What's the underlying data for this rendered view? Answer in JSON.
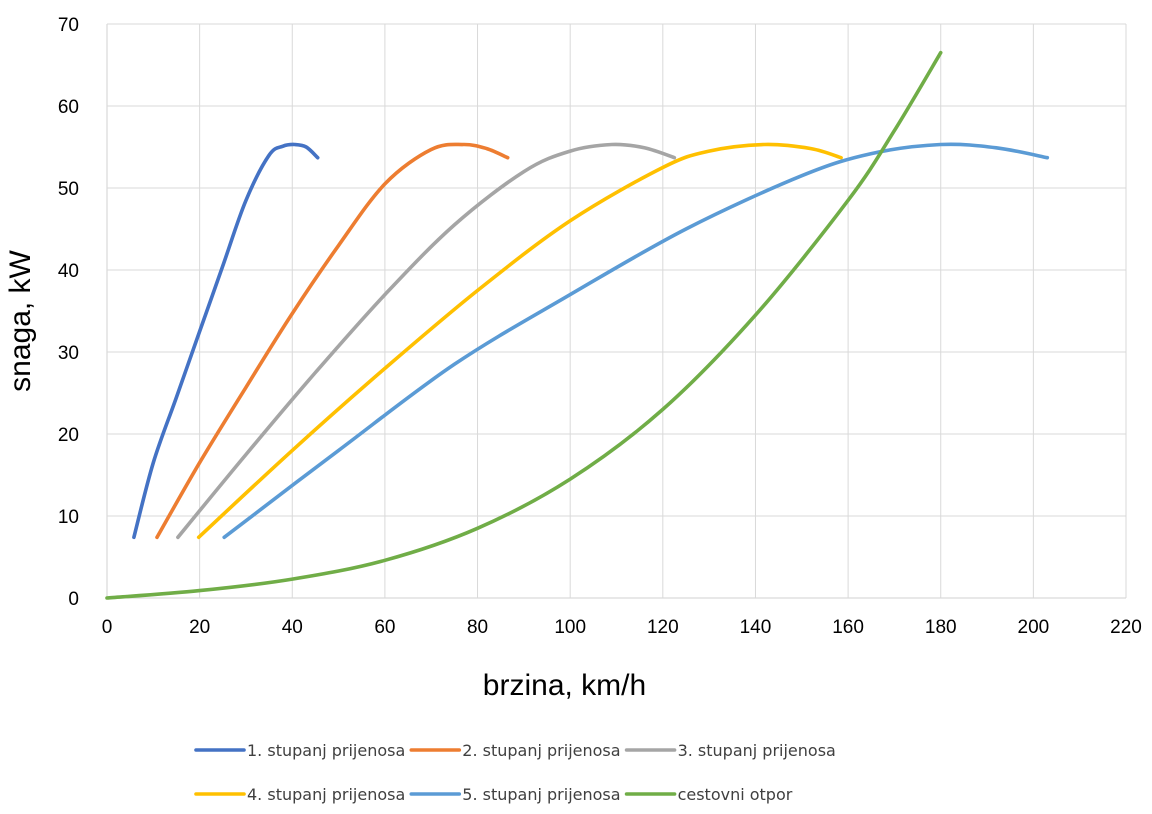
{
  "chart_data": {
    "type": "line",
    "title": "",
    "xlabel": "brzina, km/h",
    "ylabel": "snaga, kW",
    "xlim": [
      0,
      220
    ],
    "ylim": [
      0,
      70
    ],
    "x_ticks": [
      0,
      20,
      40,
      60,
      80,
      100,
      120,
      140,
      160,
      180,
      200,
      220
    ],
    "y_ticks": [
      0,
      10,
      20,
      30,
      40,
      50,
      60,
      70
    ],
    "grid": true,
    "legend_position": "bottom",
    "series": [
      {
        "name": "1. stupanj prijenosa",
        "color": "#4472C4",
        "x": [
          5.8,
          10,
          15,
          20,
          25,
          30,
          35,
          38,
          40.5,
          43,
          45.5
        ],
        "y": [
          7.4,
          16.5,
          24.5,
          32.5,
          40.5,
          48.5,
          54,
          55.1,
          55.3,
          55,
          53.7
        ]
      },
      {
        "name": "2. stupanj prijenosa",
        "color": "#ED7D31",
        "x": [
          10.8,
          20,
          30,
          40,
          50,
          60,
          70,
          77,
          82,
          86.5
        ],
        "y": [
          7.4,
          16.5,
          25.7,
          34.7,
          43,
          50.5,
          54.7,
          55.3,
          54.8,
          53.7
        ]
      },
      {
        "name": "3. stupanj prijenosa",
        "color": "#A5A5A5",
        "x": [
          15.3,
          30,
          45,
          60,
          75,
          90,
          100,
          109,
          116,
          122.5
        ],
        "y": [
          7.4,
          17.5,
          27.5,
          37,
          45.5,
          52,
          54.5,
          55.3,
          54.9,
          53.7
        ]
      },
      {
        "name": "4. stupanj prijenosa",
        "color": "#FFC000",
        "x": [
          19.8,
          40,
          60,
          80,
          100,
          120,
          130,
          142,
          152,
          158.5
        ],
        "y": [
          7.4,
          18,
          28,
          37.5,
          46,
          52.5,
          54.5,
          55.3,
          54.8,
          53.7
        ]
      },
      {
        "name": "5. stupanj prijenosa",
        "color": "#5B9BD5",
        "x": [
          25.3,
          50,
          75,
          100,
          125,
          150,
          165,
          180,
          192,
          203
        ],
        "y": [
          7.4,
          18,
          28.5,
          37,
          45,
          51.5,
          54.2,
          55.3,
          54.9,
          53.7
        ]
      },
      {
        "name": "cestovni otpor",
        "color": "#70AD47",
        "x": [
          0,
          20,
          40,
          60,
          80,
          100,
          120,
          140,
          160,
          170,
          180
        ],
        "y": [
          0,
          0.9,
          2.3,
          4.6,
          8.5,
          14.5,
          23,
          34.5,
          48.5,
          57,
          66.5
        ]
      }
    ]
  }
}
